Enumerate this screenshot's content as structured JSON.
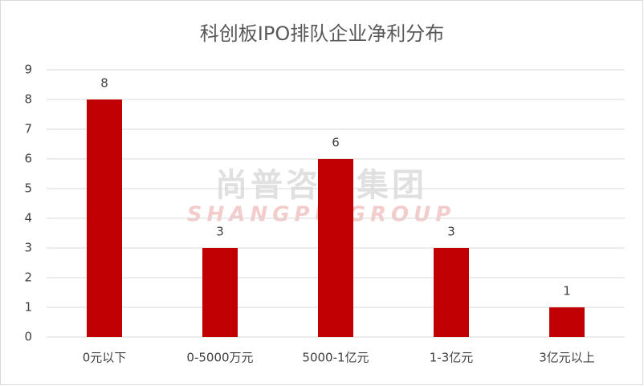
{
  "chart_data": {
    "type": "bar",
    "title": "科创板IPO排队企业净利分布",
    "categories": [
      "0元以下",
      "0-5000万元",
      "5000-1亿元",
      "1-3亿元",
      "3亿元以上"
    ],
    "values": [
      8,
      3,
      6,
      3,
      1
    ],
    "color": "#c00000",
    "ylim": [
      0,
      9
    ],
    "yticks": [
      0,
      1,
      2,
      3,
      4,
      5,
      6,
      7,
      8,
      9
    ],
    "grid": true,
    "watermark": {
      "text": "尚普咨询集团",
      "subtext": "SHANGPU GROUP"
    }
  }
}
